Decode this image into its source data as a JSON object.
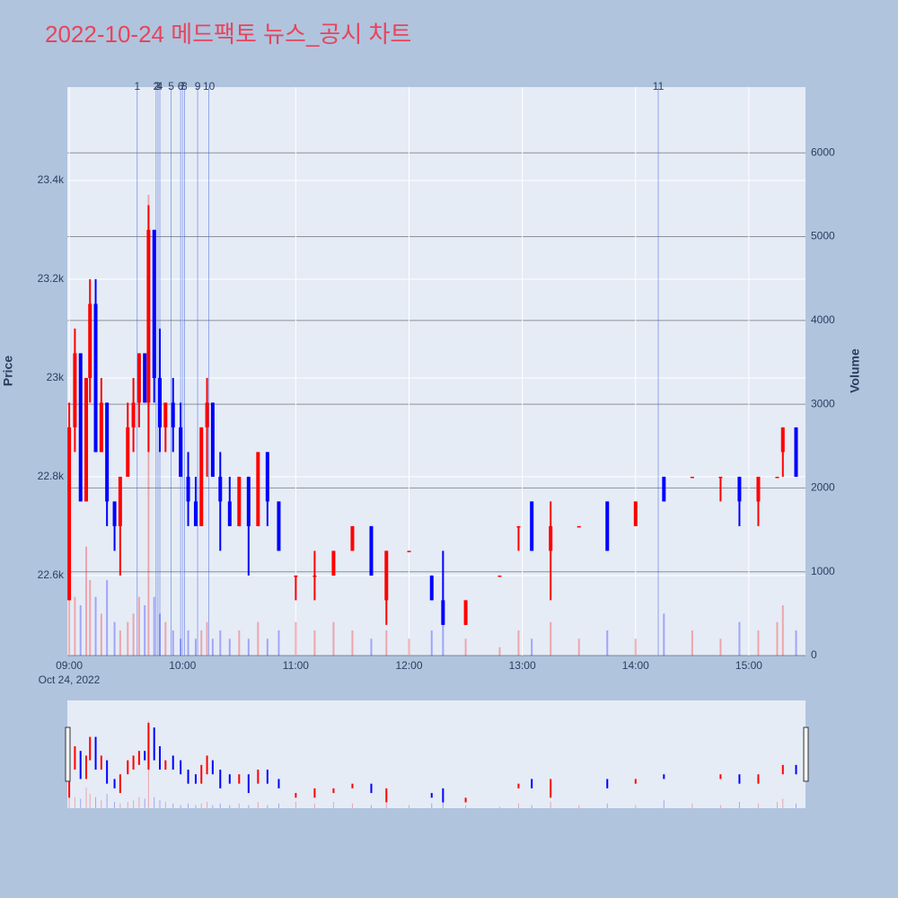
{
  "chart_data": {
    "type": "candlestick",
    "title": "2022-10-24 메드팩토 뉴스_공시 차트",
    "y_label": "Price",
    "y2_label": "Volume",
    "date_label": "Oct 24, 2022",
    "up_color": "#ff0000",
    "down_color": "#0000ff",
    "x": [
      "09:00",
      "09:03",
      "09:06",
      "09:09",
      "09:11",
      "09:14",
      "09:17",
      "09:20",
      "09:24",
      "09:27",
      "09:31",
      "09:34",
      "09:37",
      "09:40",
      "09:42",
      "09:45",
      "09:48",
      "09:51",
      "09:55",
      "09:59",
      "10:03",
      "10:07",
      "10:10",
      "10:13",
      "10:16",
      "10:20",
      "10:25",
      "10:30",
      "10:35",
      "10:40",
      "10:45",
      "10:51",
      "11:00",
      "11:10",
      "11:20",
      "11:30",
      "11:40",
      "11:48",
      "12:00",
      "12:12",
      "12:18",
      "12:30",
      "12:48",
      "12:58",
      "13:05",
      "13:15",
      "13:30",
      "13:45",
      "14:00",
      "14:15",
      "14:30",
      "14:45",
      "14:55",
      "15:05",
      "15:15",
      "15:18",
      "15:25"
    ],
    "open": [
      22550,
      22900,
      23050,
      22750,
      23000,
      23150,
      22850,
      22950,
      22750,
      22700,
      22800,
      22900,
      22950,
      23050,
      22950,
      23300,
      23000,
      22900,
      22950,
      22900,
      22800,
      22750,
      22700,
      22900,
      22950,
      22800,
      22750,
      22700,
      22800,
      22700,
      22850,
      22750,
      22600,
      22600,
      22600,
      22650,
      22700,
      22550,
      22650,
      22600,
      22550,
      22500,
      22600,
      22700,
      22750,
      22650,
      22700,
      22750,
      22700,
      22800,
      22800,
      22800,
      22800,
      22750,
      22800,
      22850,
      22900
    ],
    "high": [
      22950,
      23100,
      23050,
      23000,
      23200,
      23200,
      23000,
      22950,
      22750,
      22800,
      22950,
      23000,
      23050,
      23050,
      23350,
      23300,
      23100,
      22950,
      23000,
      22950,
      22850,
      22800,
      22900,
      23000,
      22950,
      22850,
      22800,
      22800,
      22800,
      22850,
      22850,
      22750,
      22600,
      22650,
      22650,
      22700,
      22700,
      22650,
      22650,
      22600,
      22650,
      22550,
      22600,
      22700,
      22750,
      22750,
      22700,
      22750,
      22750,
      22800,
      22800,
      22800,
      22800,
      22800,
      22800,
      22900,
      22900
    ],
    "low": [
      22550,
      22850,
      22750,
      22750,
      22950,
      22850,
      22850,
      22700,
      22650,
      22600,
      22800,
      22850,
      22900,
      22950,
      22850,
      22950,
      22850,
      22850,
      22850,
      22800,
      22700,
      22700,
      22700,
      22800,
      22800,
      22650,
      22700,
      22700,
      22600,
      22700,
      22700,
      22650,
      22550,
      22550,
      22600,
      22650,
      22600,
      22500,
      22650,
      22550,
      22500,
      22500,
      22600,
      22650,
      22650,
      22550,
      22700,
      22650,
      22700,
      22750,
      22800,
      22750,
      22700,
      22700,
      22800,
      22800,
      22800
    ],
    "close": [
      22900,
      23050,
      22750,
      23000,
      23150,
      22850,
      22950,
      22750,
      22700,
      22800,
      22900,
      22950,
      23050,
      22950,
      23300,
      23000,
      22900,
      22950,
      22900,
      22800,
      22750,
      22700,
      22900,
      22950,
      22800,
      22750,
      22700,
      22800,
      22700,
      22850,
      22750,
      22650,
      22600,
      22600,
      22650,
      22700,
      22600,
      22650,
      22650,
      22550,
      22500,
      22550,
      22600,
      22700,
      22650,
      22700,
      22700,
      22650,
      22750,
      22750,
      22800,
      22800,
      22750,
      22800,
      22800,
      22900,
      22800
    ],
    "volume": [
      1500,
      700,
      600,
      1300,
      900,
      700,
      500,
      900,
      400,
      300,
      400,
      500,
      700,
      600,
      5500,
      700,
      500,
      400,
      300,
      200,
      300,
      200,
      300,
      400,
      200,
      300,
      200,
      300,
      200,
      400,
      200,
      300,
      400,
      300,
      400,
      300,
      200,
      300,
      200,
      300,
      400,
      200,
      100,
      300,
      200,
      400,
      200,
      300,
      200,
      500,
      300,
      200,
      400,
      300,
      400,
      600,
      300
    ],
    "news": [
      {
        "label": "1",
        "x": "09:36"
      },
      {
        "label": "2",
        "x": "09:46"
      },
      {
        "label": "3",
        "x": "09:47"
      },
      {
        "label": "4",
        "x": "09:48"
      },
      {
        "label": "5",
        "x": "09:54"
      },
      {
        "label": "6",
        "x": "09:59"
      },
      {
        "label": "7",
        "x": "10:00"
      },
      {
        "label": "8",
        "x": "10:01"
      },
      {
        "label": "9",
        "x": "10:08"
      },
      {
        "label": "10",
        "x": "10:14"
      },
      {
        "label": "11",
        "x": "14:12"
      }
    ],
    "xlim": [
      "08:59",
      "15:30"
    ],
    "xticks": [
      "09:00",
      "10:00",
      "11:00",
      "12:00",
      "13:00",
      "14:00",
      "15:00"
    ],
    "ylim": [
      22438,
      23589
    ],
    "yticks": [
      {
        "value": 22600,
        "label": "22.6k"
      },
      {
        "value": 22800,
        "label": "22.8k"
      },
      {
        "value": 23000,
        "label": "23k"
      },
      {
        "value": 23200,
        "label": "23.2k"
      },
      {
        "value": 23400,
        "label": "23.4k"
      }
    ],
    "y2lim": [
      0,
      6785
    ],
    "y2ticks": [
      0,
      1000,
      2000,
      3000,
      4000,
      5000,
      6000
    ]
  }
}
